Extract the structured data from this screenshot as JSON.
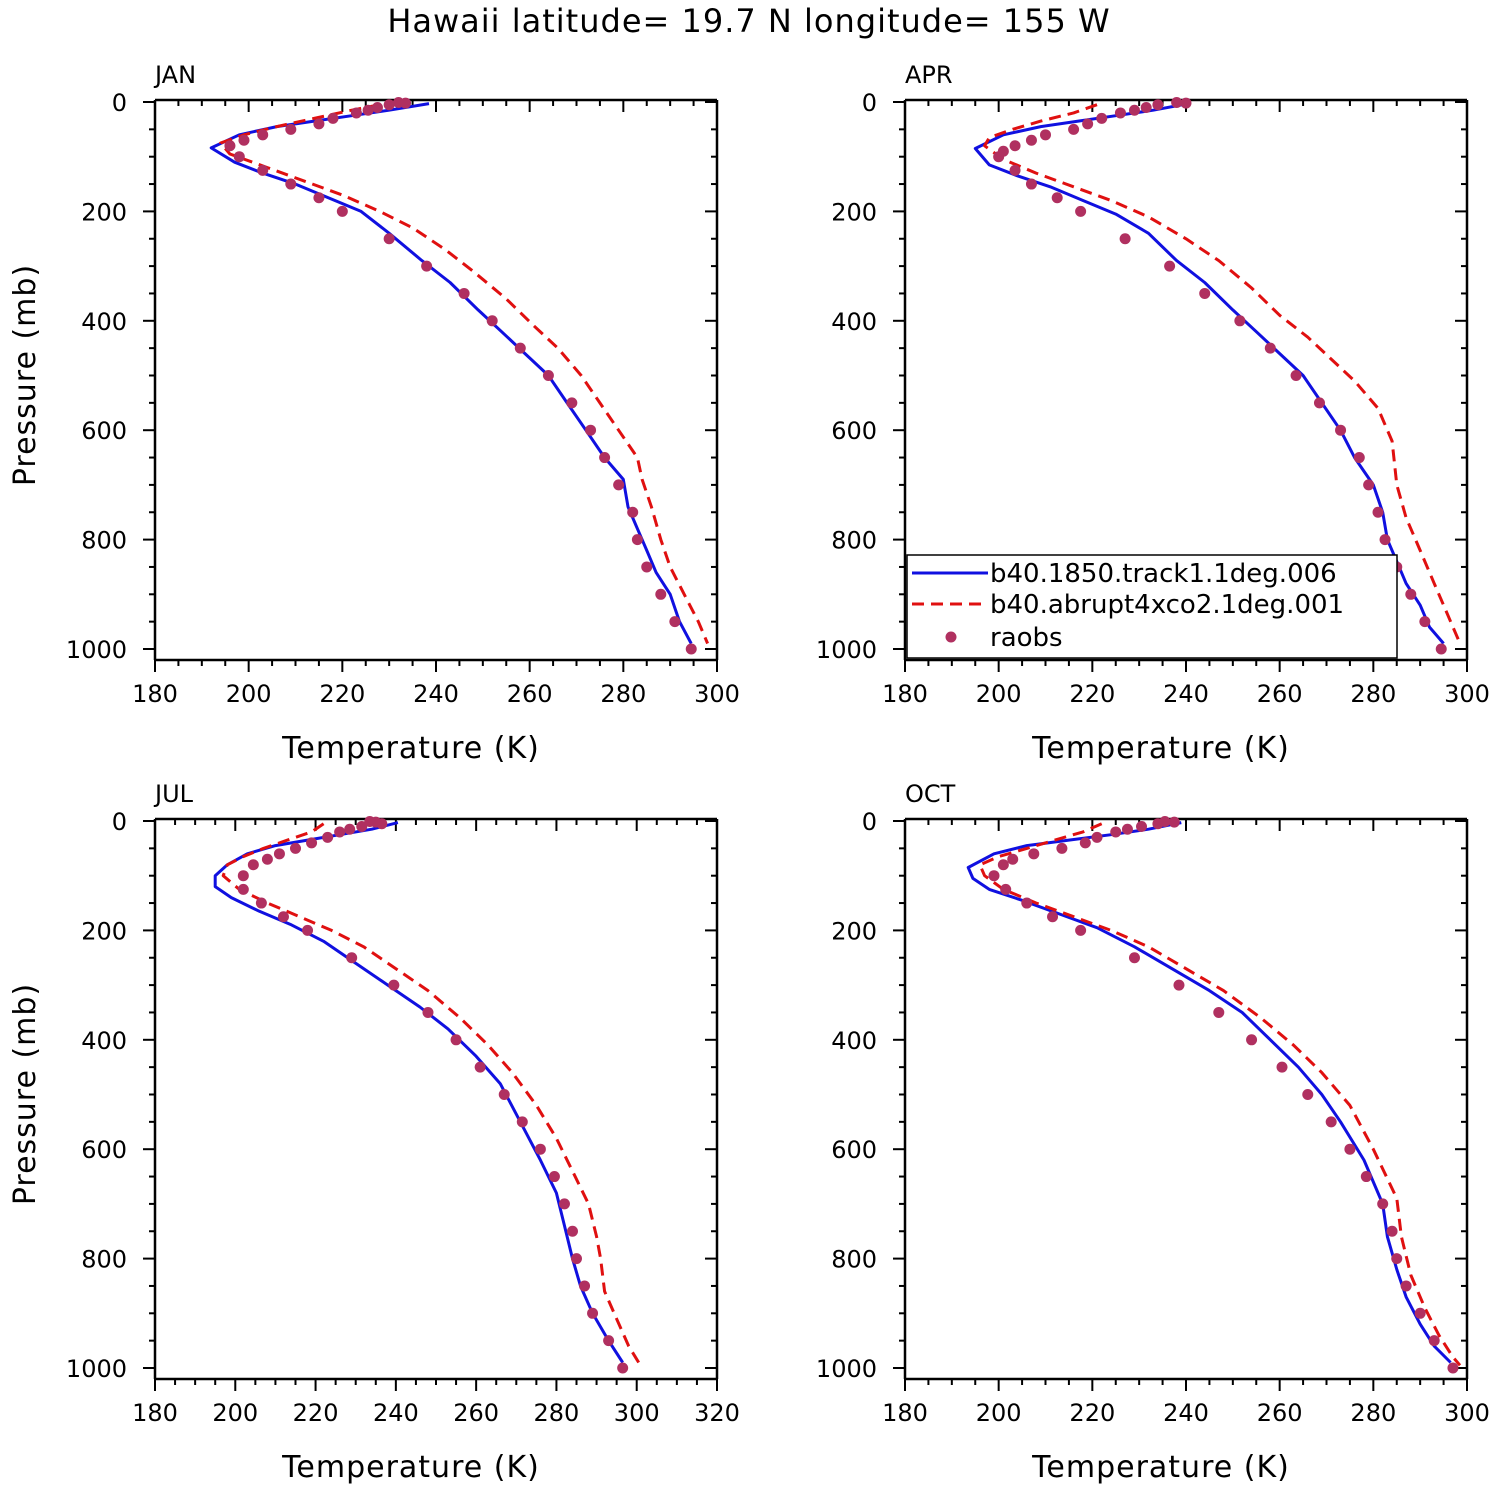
{
  "title": "Hawaii  latitude= 19.7 N longitude= 155 W",
  "colors": {
    "model_1850": "#1010e0",
    "model_4xco2": "#e01010",
    "raobs": "#b03060",
    "axis": "#000000"
  },
  "legend": {
    "entries": [
      {
        "label": "b40.1850.track1.1deg.006",
        "style": "solid",
        "color": "#1010e0"
      },
      {
        "label": "b40.abrupt4xco2.1deg.001",
        "style": "dashed",
        "color": "#e01010"
      },
      {
        "label": "raobs",
        "style": "dot",
        "color": "#b03060"
      }
    ]
  },
  "chart_data": [
    {
      "type": "line",
      "panel": "JAN",
      "xlabel": "Temperature (K)",
      "ylabel": "Pressure (mb)",
      "xlim": [
        180,
        300
      ],
      "ylim": [
        1000,
        0
      ],
      "y_inverted": true,
      "xticks": [
        180,
        200,
        220,
        240,
        260,
        280,
        300
      ],
      "yticks": [
        0,
        200,
        400,
        600,
        800,
        1000
      ],
      "series": [
        {
          "name": "b40.1850.track1.1deg.006",
          "style": "solid",
          "x": [
            238.5,
            230,
            222,
            214,
            206,
            198,
            192,
            197,
            203,
            210,
            217,
            224,
            230,
            237,
            243,
            249,
            254,
            259,
            264,
            268,
            272,
            276,
            280,
            281,
            283,
            285,
            287,
            290,
            292,
            294.5
          ],
          "y": [
            3,
            15,
            25,
            35,
            45,
            60,
            84,
            110,
            130,
            150,
            175,
            200,
            240,
            290,
            330,
            380,
            420,
            460,
            500,
            550,
            600,
            650,
            690,
            740,
            780,
            820,
            860,
            900,
            950,
            990
          ]
        },
        {
          "name": "b40.abrupt4xco2.1deg.001",
          "style": "dashed",
          "x": [
            228,
            222,
            214,
            206,
            199,
            194,
            196,
            204,
            212,
            220,
            228,
            235,
            242,
            248,
            255,
            261,
            266,
            271,
            275,
            279,
            283,
            284,
            286,
            288,
            290,
            293,
            296,
            298
          ],
          "y": [
            5,
            15,
            30,
            45,
            60,
            75,
            95,
            120,
            145,
            170,
            200,
            230,
            270,
            310,
            360,
            410,
            450,
            500,
            550,
            600,
            650,
            690,
            740,
            800,
            850,
            900,
            950,
            990
          ]
        },
        {
          "name": "raobs",
          "style": "dot",
          "x": [
            232,
            233.5,
            230,
            227.5,
            225.5,
            223,
            218,
            215,
            209,
            203,
            199,
            196,
            198,
            203,
            209,
            215,
            220,
            230,
            238,
            246,
            252,
            258,
            264,
            269,
            273,
            276,
            279,
            282,
            283,
            285,
            288,
            291,
            294.5
          ],
          "y": [
            1,
            2,
            5,
            10,
            15,
            20,
            30,
            40,
            50,
            60,
            70,
            80,
            100,
            125,
            150,
            175,
            200,
            250,
            300,
            350,
            400,
            450,
            500,
            550,
            600,
            650,
            700,
            750,
            800,
            850,
            900,
            950,
            1000
          ]
        }
      ]
    },
    {
      "type": "line",
      "panel": "APR",
      "xlabel": "Temperature (K)",
      "ylabel": "Pressure (mb)",
      "xlim": [
        180,
        300
      ],
      "ylim": [
        1000,
        0
      ],
      "y_inverted": true,
      "xticks": [
        180,
        200,
        220,
        240,
        260,
        280,
        300
      ],
      "yticks": [
        0,
        200,
        400,
        600,
        800,
        1000
      ],
      "series": [
        {
          "name": "b40.1850.track1.1deg.006",
          "style": "solid",
          "x": [
            240.5,
            233,
            225,
            217,
            209,
            201,
            195,
            198,
            204,
            211,
            218,
            225,
            232,
            238,
            244,
            250,
            255,
            260,
            265,
            269,
            273,
            276,
            280,
            282,
            283,
            285,
            287,
            290,
            292,
            295
          ],
          "y": [
            3,
            15,
            25,
            35,
            45,
            60,
            85,
            115,
            135,
            155,
            180,
            205,
            240,
            290,
            330,
            380,
            420,
            460,
            500,
            550,
            600,
            650,
            700,
            750,
            800,
            840,
            880,
            920,
            960,
            990
          ]
        },
        {
          "name": "b40.abrupt4xco2.1deg.001",
          "style": "dashed",
          "x": [
            221,
            216,
            209,
            203,
            198,
            197,
            201,
            208,
            216,
            224,
            232,
            240,
            247,
            254,
            260,
            266,
            271,
            276,
            281,
            284,
            285,
            287,
            290,
            293,
            296,
            298.5
          ],
          "y": [
            5,
            20,
            35,
            50,
            65,
            80,
            105,
            130,
            155,
            180,
            210,
            250,
            290,
            340,
            390,
            430,
            470,
            510,
            560,
            620,
            700,
            760,
            820,
            880,
            940,
            990
          ]
        },
        {
          "name": "raobs",
          "style": "dot",
          "x": [
            238,
            240,
            234,
            231.5,
            229,
            226,
            222,
            219,
            216,
            210,
            207,
            203.5,
            201,
            200,
            203.5,
            207,
            212.5,
            217.5,
            227,
            236.5,
            244,
            251.5,
            258,
            263.5,
            268.5,
            273,
            277,
            279,
            281,
            282.5,
            285,
            288,
            291,
            294.5
          ],
          "y": [
            1,
            2,
            5,
            10,
            15,
            20,
            30,
            40,
            50,
            60,
            70,
            80,
            90,
            100,
            125,
            150,
            175,
            200,
            250,
            300,
            350,
            400,
            450,
            500,
            550,
            600,
            650,
            700,
            750,
            800,
            850,
            900,
            950,
            1000
          ]
        }
      ]
    },
    {
      "type": "line",
      "panel": "JUL",
      "xlabel": "Temperature (K)",
      "ylabel": "Pressure (mb)",
      "xlim": [
        180,
        320
      ],
      "ylim": [
        1000,
        0
      ],
      "y_inverted": true,
      "xticks": [
        180,
        200,
        220,
        240,
        260,
        280,
        300,
        320
      ],
      "yticks": [
        0,
        200,
        400,
        600,
        800,
        1000
      ],
      "series": [
        {
          "name": "b40.1850.track1.1deg.006",
          "style": "solid",
          "x": [
            240.5,
            234,
            226,
            218,
            210,
            203,
            198,
            195,
            195,
            199,
            206,
            214,
            222,
            230,
            238,
            246,
            253,
            260,
            266,
            271,
            276,
            280,
            282,
            284,
            286,
            289,
            293,
            296.5
          ],
          "y": [
            3,
            15,
            25,
            35,
            45,
            60,
            80,
            100,
            120,
            140,
            165,
            190,
            220,
            260,
            300,
            340,
            380,
            430,
            480,
            550,
            620,
            680,
            740,
            800,
            850,
            900,
            950,
            990
          ]
        },
        {
          "name": "b40.abrupt4xco2.1deg.001",
          "style": "dashed",
          "x": [
            222,
            219,
            213,
            207,
            202,
            198,
            197,
            201,
            208,
            216,
            224,
            232,
            240,
            248,
            256,
            263,
            269,
            275,
            280,
            284,
            288,
            290,
            291,
            292,
            295,
            298,
            300.5
          ],
          "y": [
            5,
            20,
            35,
            50,
            65,
            80,
            100,
            125,
            150,
            175,
            200,
            230,
            270,
            310,
            360,
            410,
            460,
            520,
            580,
            640,
            700,
            760,
            800,
            860,
            910,
            960,
            990
          ]
        },
        {
          "name": "raobs",
          "style": "dot",
          "x": [
            233.5,
            235,
            236.5,
            231.5,
            228.5,
            226,
            223,
            219,
            215,
            211,
            208,
            204.5,
            202,
            202,
            206.5,
            212,
            218,
            229,
            239.5,
            248,
            255,
            261,
            267,
            271.5,
            276,
            279.5,
            282,
            284,
            285,
            287,
            289,
            293,
            296.5
          ],
          "y": [
            1,
            2,
            5,
            10,
            15,
            20,
            30,
            40,
            50,
            60,
            70,
            80,
            100,
            125,
            150,
            175,
            200,
            250,
            300,
            350,
            400,
            450,
            500,
            550,
            600,
            650,
            700,
            750,
            800,
            850,
            900,
            950,
            1000
          ]
        }
      ]
    },
    {
      "type": "line",
      "panel": "OCT",
      "xlabel": "Temperature (K)",
      "ylabel": "Pressure (mb)",
      "xlim": [
        180,
        300
      ],
      "ylim": [
        1000,
        0
      ],
      "y_inverted": true,
      "xticks": [
        180,
        200,
        220,
        240,
        260,
        280,
        300
      ],
      "yticks": [
        0,
        200,
        400,
        600,
        800,
        1000
      ],
      "series": [
        {
          "name": "b40.1850.track1.1deg.006",
          "style": "solid",
          "x": [
            239,
            232,
            224,
            215,
            206,
            199,
            193.5,
            194.5,
            198,
            205,
            213,
            221,
            229,
            237,
            245,
            252,
            258,
            264,
            269,
            273,
            278,
            282,
            283,
            285,
            287,
            290,
            293,
            296.5
          ],
          "y": [
            3,
            15,
            25,
            35,
            45,
            60,
            85,
            105,
            125,
            145,
            170,
            195,
            230,
            270,
            310,
            350,
            400,
            450,
            500,
            550,
            620,
            700,
            760,
            820,
            870,
            920,
            960,
            990
          ]
        },
        {
          "name": "b40.abrupt4xco2.1deg.001",
          "style": "dashed",
          "x": [
            222,
            218,
            212,
            206,
            200,
            196,
            197,
            201,
            208,
            216,
            224,
            232,
            240,
            248,
            256,
            263,
            269,
            275,
            280,
            285,
            286,
            288,
            291,
            294,
            297,
            298.5
          ],
          "y": [
            5,
            20,
            35,
            50,
            65,
            80,
            100,
            125,
            150,
            175,
            200,
            230,
            270,
            310,
            360,
            410,
            460,
            520,
            600,
            690,
            760,
            830,
            890,
            940,
            980,
            995
          ]
        },
        {
          "name": "raobs",
          "style": "dot",
          "x": [
            235.5,
            237.5,
            234,
            230.5,
            227.5,
            225,
            221,
            218.5,
            213.5,
            207.5,
            203,
            201,
            199,
            201.5,
            206,
            211.5,
            217.5,
            229,
            238.5,
            247,
            254,
            260.5,
            266,
            271,
            275,
            278.5,
            282,
            284,
            285,
            287,
            290,
            293,
            297
          ],
          "y": [
            1,
            2,
            5,
            10,
            15,
            20,
            30,
            40,
            50,
            60,
            70,
            80,
            100,
            125,
            150,
            175,
            200,
            250,
            300,
            350,
            400,
            450,
            500,
            550,
            600,
            650,
            700,
            750,
            800,
            850,
            900,
            950,
            1000
          ]
        }
      ]
    }
  ]
}
